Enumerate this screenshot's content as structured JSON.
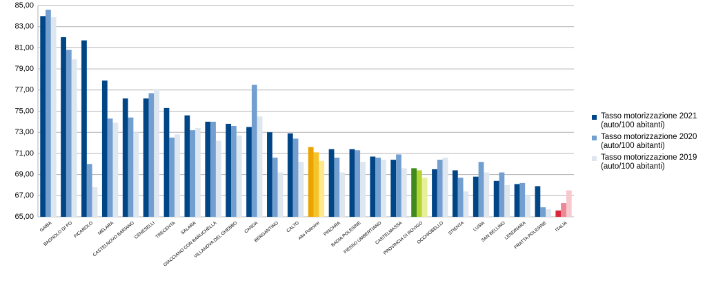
{
  "chart_data": {
    "type": "bar",
    "categories": [
      "GAIBA",
      "BAGNOLO DI PO",
      "FICAROLO",
      "MELARA",
      "CASTELNOVO BARIANO",
      "CENESELLI",
      "TRECENTA",
      "SALARA",
      "GIACCIANO CON BARUCHELLA",
      "VILLANOVA DEL GHEBBO",
      "CANDA",
      "BERGANTINO",
      "CALTO",
      "Alto Polesine",
      "PINCARA",
      "BADIA POLESINE",
      "FIESSO UMBERTIANO",
      "CASTELMASSA",
      "PROVINCIA DI ROVIGO",
      "OCCHIOBELLO",
      "STIENTA",
      "LUSIA",
      "SAN BELLINO",
      "LENDINARA",
      "FRATTA POLESINE",
      "ITALIA"
    ],
    "series": [
      {
        "name": "Tasso motorizzazione 2021\n(auto/100 abitanti)",
        "color": "#004586",
        "values": [
          84.0,
          82.0,
          81.7,
          77.9,
          76.2,
          76.2,
          75.3,
          74.6,
          74.0,
          73.8,
          73.5,
          73.0,
          72.9,
          71.6,
          71.4,
          71.4,
          70.7,
          70.4,
          69.6,
          69.5,
          69.4,
          68.8,
          68.4,
          68.1,
          67.9,
          65.6
        ]
      },
      {
        "name": "Tasso motorizzazione 2020\n(auto/100 abitanti)",
        "color": "#729fcf",
        "values": [
          84.6,
          80.8,
          70.0,
          74.3,
          74.4,
          76.7,
          72.5,
          73.2,
          74.0,
          73.6,
          77.5,
          70.6,
          72.4,
          71.1,
          70.6,
          71.3,
          70.6,
          70.9,
          69.4,
          70.4,
          68.7,
          70.2,
          69.2,
          68.2,
          65.9,
          66.3
        ]
      },
      {
        "name": "Tasso motorizzazione 2019\n(auto/100 abitanti)",
        "color": "#dee6ef",
        "values": [
          83.9,
          79.9,
          67.8,
          73.9,
          73.0,
          77.1,
          72.8,
          73.4,
          72.2,
          72.7,
          74.5,
          69.2,
          70.2,
          70.3,
          69.2,
          70.2,
          70.4,
          69.6,
          68.7,
          70.6,
          67.4,
          69.2,
          68.0,
          67.0,
          65.7,
          67.5
        ]
      }
    ],
    "highlights": [
      {
        "index": 13,
        "colors": [
          "#eaa300",
          "#f5c42a",
          "#fde98a"
        ]
      },
      {
        "index": 18,
        "colors": [
          "#3f8a1c",
          "#b5d433",
          "#e6f09a"
        ]
      },
      {
        "index": 25,
        "colors": [
          "#d9293f",
          "#ea8896",
          "#f7c8ce"
        ]
      }
    ],
    "ylim": [
      65,
      85
    ],
    "yticks": [
      {
        "value": 65,
        "label": "65,00"
      },
      {
        "value": 67,
        "label": "67,00"
      },
      {
        "value": 69,
        "label": "69,00"
      },
      {
        "value": 71,
        "label": "71,00"
      },
      {
        "value": 73,
        "label": "73,00"
      },
      {
        "value": 75,
        "label": "75,00"
      },
      {
        "value": 77,
        "label": "77,00"
      },
      {
        "value": 79,
        "label": "79,00"
      },
      {
        "value": 81,
        "label": "81,00"
      },
      {
        "value": 83,
        "label": "83,00"
      },
      {
        "value": 85,
        "label": "85,00"
      }
    ],
    "grid": true,
    "legend": "right"
  }
}
